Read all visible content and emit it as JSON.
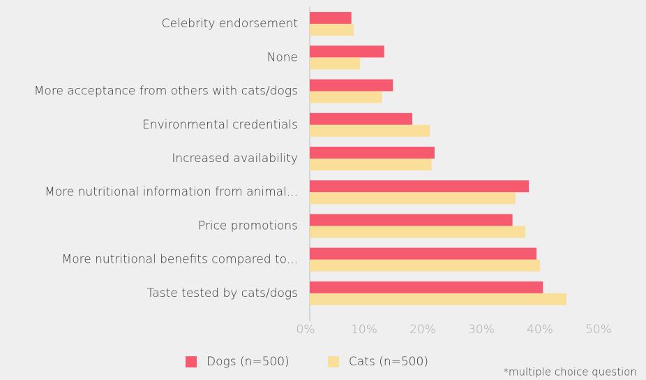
{
  "chart_data": {
    "type": "barh",
    "categories": [
      "Celebrity endorsement",
      "None",
      "More acceptance from others with cats/dogs",
      "Environmental credentials",
      "Increased availability",
      "More nutritional information from animal...",
      "Price promotions",
      "More nutritional benefits compared to...",
      "Taste tested by cats/dogs"
    ],
    "series": [
      {
        "name": "Dogs (n=500)",
        "color": "#f65a6e",
        "values": [
          7.1,
          12.7,
          14.2,
          17.5,
          21.3,
          37.4,
          34.6,
          38.7,
          39.8
        ]
      },
      {
        "name": "Cats (n=500)",
        "color": "#fadf9b",
        "values": [
          7.5,
          8.6,
          12.3,
          20.5,
          20.8,
          35.1,
          36.8,
          39.3,
          43.8
        ]
      }
    ],
    "xlim": [
      0,
      50
    ],
    "xticks": [
      {
        "value": 0,
        "label": "0%"
      },
      {
        "value": 10,
        "label": "10%"
      },
      {
        "value": 20,
        "label": "20%"
      },
      {
        "value": 30,
        "label": "30%"
      },
      {
        "value": 40,
        "label": "40%"
      },
      {
        "value": 50,
        "label": "50%"
      }
    ],
    "legend": "bottom",
    "note": "*multiple choice question"
  }
}
